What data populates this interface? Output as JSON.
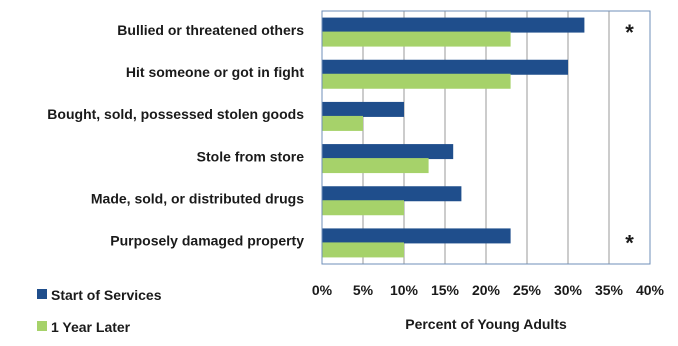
{
  "chart_data": {
    "type": "bar",
    "orientation": "horizontal",
    "categories": [
      "Bullied or threatened others",
      "Hit someone or got in fight",
      "Bought, sold, possessed stolen goods",
      "Stole from store",
      "Made, sold, or distributed drugs",
      "Purposely damaged property"
    ],
    "series": [
      {
        "name": "Start of Services",
        "color": "#1f4e8c",
        "values": [
          32,
          30,
          10,
          16,
          17,
          23
        ]
      },
      {
        "name": "1 Year Later",
        "color": "#a6d26a",
        "values": [
          23,
          23,
          5,
          13,
          10,
          10
        ]
      }
    ],
    "xlabel": "Percent of Young Adults",
    "xlim": [
      0,
      40
    ],
    "xticks": [
      0,
      5,
      10,
      15,
      20,
      25,
      30,
      35,
      40
    ],
    "tick_suffix": "%",
    "grid": "vertical",
    "legend_position": "bottom-left",
    "annotations": [
      {
        "category_index": 0,
        "text": "*"
      },
      {
        "category_index": 5,
        "text": "*"
      }
    ],
    "gridline_color": "#9a9a9a",
    "frame_color": "#6f8fb8"
  }
}
